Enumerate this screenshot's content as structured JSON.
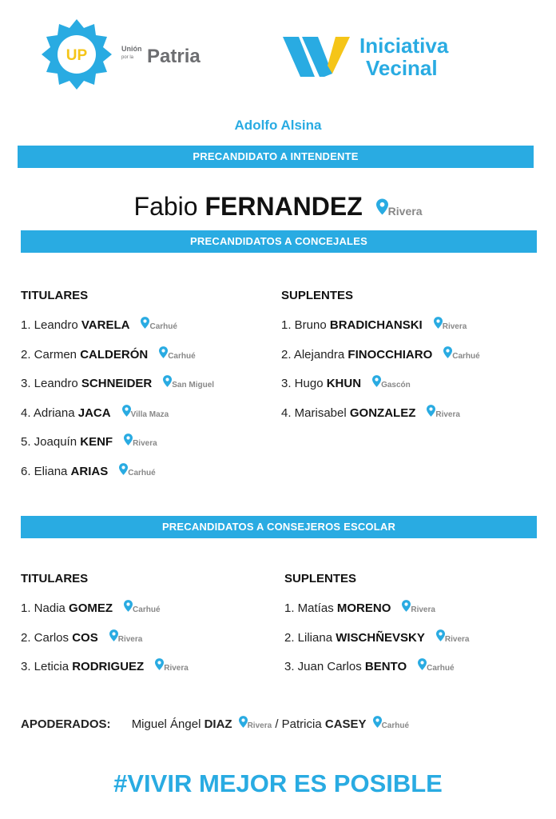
{
  "logos": {
    "left": {
      "mark": "UP",
      "line1": "Unión",
      "line2": "por la",
      "name": "Patria"
    },
    "right": {
      "line1": "Iniciativa",
      "line2": "Vecinal"
    }
  },
  "colors": {
    "accent": "#29abe2",
    "yellow": "#f5c518",
    "grey": "#6d6e71"
  },
  "municipality": "Adolfo Alsina",
  "intendente": {
    "header": "PRECANDIDATO A INTENDENTE",
    "first": "Fabio",
    "last": "FERNANDEZ",
    "place": "Rivera"
  },
  "concejales": {
    "header": "PRECANDIDATOS A CONCEJALES",
    "titulares_label": "TITULARES",
    "suplentes_label": "SUPLENTES",
    "titulares": [
      {
        "first": "1. Leandro",
        "last": "VARELA",
        "place": "Carhué"
      },
      {
        "first": "2. Carmen",
        "last": "CALDERÓN",
        "place": "Carhué"
      },
      {
        "first": "3. Leandro",
        "last": "SCHNEIDER",
        "place": "San Miguel"
      },
      {
        "first": "4. Adriana",
        "last": "JACA",
        "place": "Villa Maza"
      },
      {
        "first": "5. Joaquín",
        "last": "KENF",
        "place": "Rivera"
      },
      {
        "first": "6. Eliana",
        "last": "ARIAS",
        "place": "Carhué"
      }
    ],
    "suplentes": [
      {
        "first": "1. Bruno",
        "last": "BRADICHANSKI",
        "place": "Rivera"
      },
      {
        "first": "2. Alejandra",
        "last": "FINOCCHIARO",
        "place": "Carhué"
      },
      {
        "first": "3. Hugo",
        "last": "KHUN",
        "place": "Gascón"
      },
      {
        "first": "4. Marisabel",
        "last": "GONZALEZ",
        "place": "Rivera"
      }
    ]
  },
  "consejeros": {
    "header": "PRECANDIDATOS A CONSEJEROS ESCOLAR",
    "titulares_label": "TITULARES",
    "suplentes_label": "SUPLENTES",
    "titulares": [
      {
        "first": "1. Nadia",
        "last": "GOMEZ",
        "place": "Carhué"
      },
      {
        "first": "2. Carlos",
        "last": "COS",
        "place": "Rivera"
      },
      {
        "first": "3. Leticia",
        "last": "RODRIGUEZ",
        "place": "Rivera"
      }
    ],
    "suplentes": [
      {
        "first": "1. Matías",
        "last": "MORENO",
        "place": "Rivera"
      },
      {
        "first": "2. Liliana",
        "last": "WISCHÑEVSKY",
        "place": "Rivera"
      },
      {
        "first": "3. Juan Carlos",
        "last": "BENTO",
        "place": "Carhué"
      }
    ]
  },
  "apoderados": {
    "label": "APODERADOS:",
    "people": [
      {
        "first": "Miguel Ángel",
        "last": "DIAZ",
        "place": "Rivera"
      },
      {
        "first": "Patricia",
        "last": "CASEY",
        "place": "Carhué"
      }
    ],
    "separator": "/"
  },
  "hashtag": "#VIVIR MEJOR ES POSIBLE"
}
